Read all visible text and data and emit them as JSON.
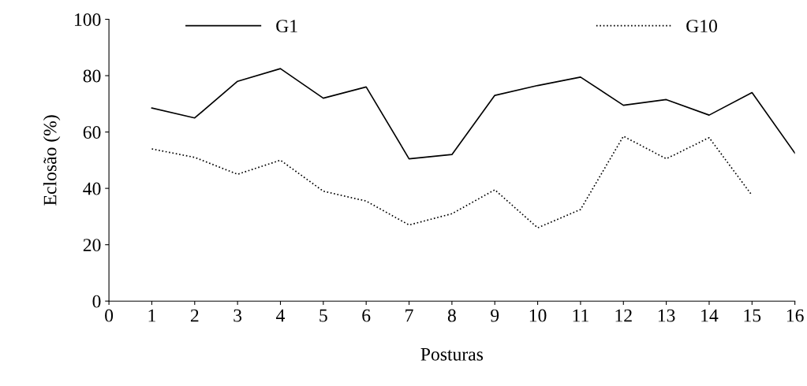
{
  "chart_data": {
    "type": "line",
    "xlabel": "Posturas",
    "ylabel": "Eclosão (%)",
    "x": [
      1,
      2,
      3,
      4,
      5,
      6,
      7,
      8,
      9,
      10,
      11,
      12,
      13,
      14,
      15,
      16
    ],
    "xlim": [
      0,
      16
    ],
    "xticks": [
      0,
      1,
      2,
      3,
      4,
      5,
      6,
      7,
      8,
      9,
      10,
      11,
      12,
      13,
      14,
      15,
      16
    ],
    "ylim": [
      0,
      100
    ],
    "yticks": [
      0,
      20,
      40,
      60,
      80,
      100
    ],
    "grid": false,
    "legend": "top",
    "marker": "none",
    "series": [
      {
        "name": "G1",
        "color": "#000000",
        "line_style": "solid",
        "values": [
          68.5,
          65,
          78,
          82.5,
          72,
          76,
          50.5,
          52,
          73,
          76.5,
          79.5,
          69.5,
          71.5,
          66,
          74,
          52.5
        ]
      },
      {
        "name": "G10",
        "color": "#000000",
        "line_style": "dotted",
        "values": [
          54,
          51,
          45,
          50,
          39,
          35.5,
          27,
          31,
          39.5,
          26,
          32.5,
          58.5,
          50.5,
          58,
          37.5,
          null
        ]
      }
    ]
  }
}
